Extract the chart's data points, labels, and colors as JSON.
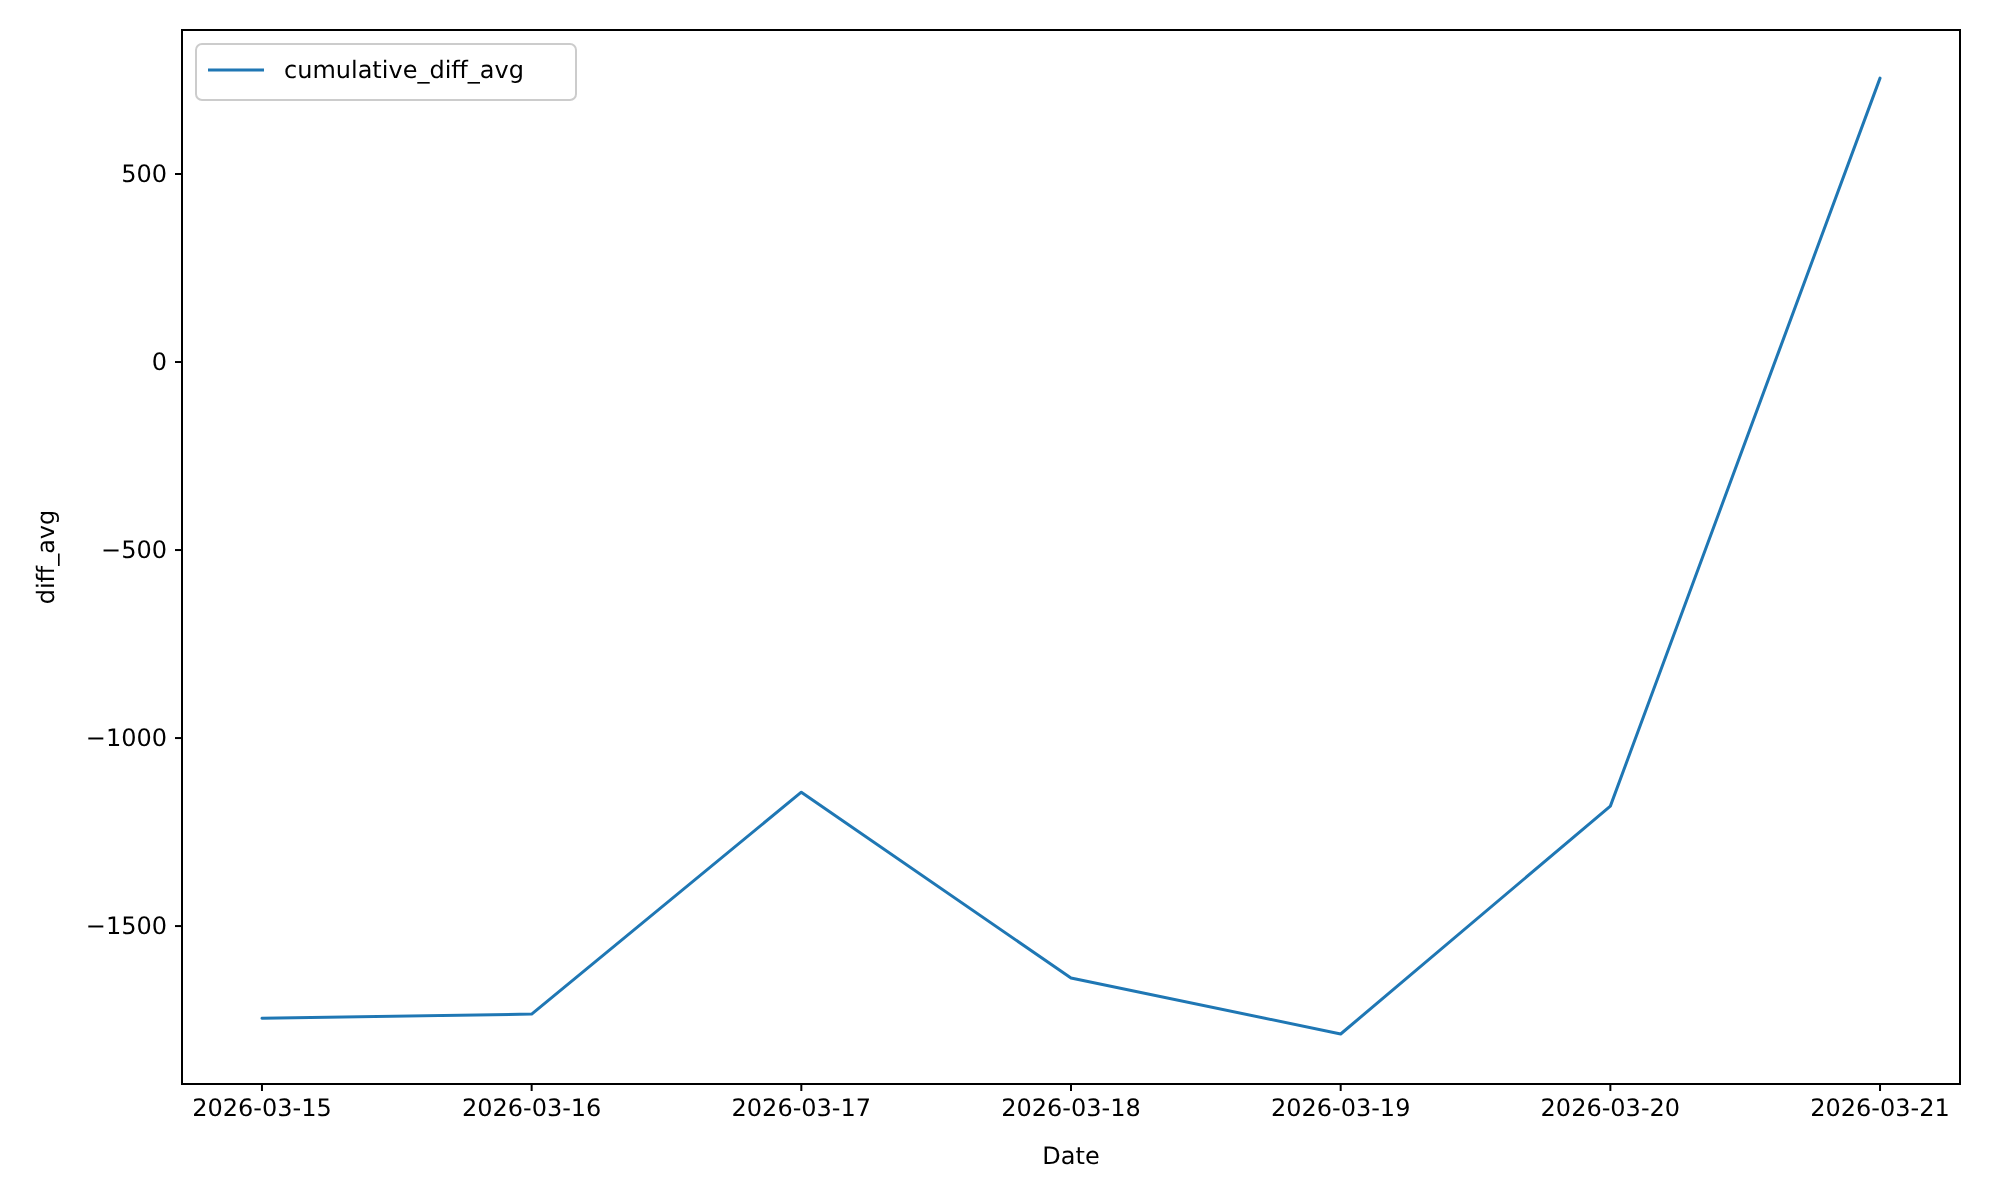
{
  "chart_data": {
    "type": "line",
    "xlabel": "Date",
    "ylabel": "diff_avg",
    "x": [
      "2026-03-15",
      "2026-03-16",
      "2026-03-17",
      "2026-03-18",
      "2026-03-19",
      "2026-03-20",
      "2026-03-21"
    ],
    "series": [
      {
        "name": "cumulative_diff_avg",
        "color": "#1f77b4",
        "values": [
          -1745,
          -1734,
          -1144,
          -1638,
          -1787,
          -1181,
          755
        ]
      }
    ],
    "xlim": [
      "2026-03-14T16:53",
      "2026-03-21T07:07"
    ],
    "xticks": [
      {
        "value": "2026-03-15",
        "label": "2026-03-15"
      },
      {
        "value": "2026-03-16",
        "label": "2026-03-16"
      },
      {
        "value": "2026-03-17",
        "label": "2026-03-17"
      },
      {
        "value": "2026-03-18",
        "label": "2026-03-18"
      },
      {
        "value": "2026-03-19",
        "label": "2026-03-19"
      },
      {
        "value": "2026-03-20",
        "label": "2026-03-20"
      },
      {
        "value": "2026-03-21",
        "label": "2026-03-21"
      }
    ],
    "ylim": [
      -1920,
      883
    ],
    "yticks": [
      {
        "value": -1500,
        "label": "−1500"
      },
      {
        "value": -1000,
        "label": "−1000"
      },
      {
        "value": -500,
        "label": "−500"
      },
      0,
      500
    ],
    "grid": false,
    "legend": "top left",
    "marker": "none",
    "line_style": "solid"
  }
}
